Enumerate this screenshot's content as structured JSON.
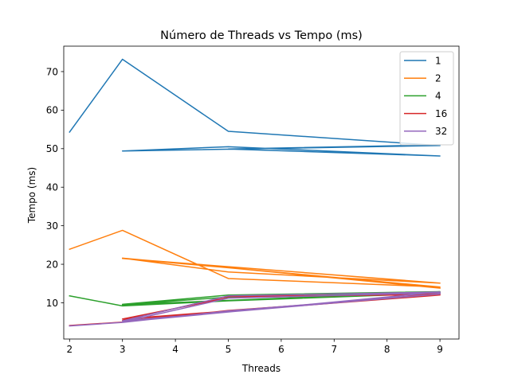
{
  "chart_data": {
    "type": "line",
    "title": "Número de Threads vs Tempo (ms)",
    "xlabel": "Threads",
    "ylabel": "Tempo (ms)",
    "xlim": [
      1.89,
      9.36
    ],
    "ylim": [
      0.6,
      76.6
    ],
    "xticks": [
      2,
      3,
      4,
      5,
      6,
      7,
      8,
      9
    ],
    "yticks": [
      10,
      20,
      30,
      40,
      50,
      60,
      70
    ],
    "grid": false,
    "legend_position": "top-right",
    "series": [
      {
        "name": "1",
        "color": "#1f77b4",
        "points": [
          [
            2,
            54.3
          ],
          [
            3,
            73.2
          ],
          [
            5,
            54.5
          ],
          [
            9,
            50.8
          ],
          [
            3,
            49.4
          ],
          [
            5,
            50.5
          ],
          [
            9,
            48.1
          ],
          [
            5,
            49.9
          ],
          [
            9,
            51.0
          ]
        ]
      },
      {
        "name": "2",
        "color": "#ff7f0e",
        "points": [
          [
            2,
            23.9
          ],
          [
            3,
            28.8
          ],
          [
            5,
            16.3
          ],
          [
            9,
            14.1
          ],
          [
            3,
            21.6
          ],
          [
            5,
            18.0
          ],
          [
            9,
            15.1
          ],
          [
            3,
            21.5
          ],
          [
            5,
            19.1
          ],
          [
            9,
            13.8
          ]
        ]
      },
      {
        "name": "4",
        "color": "#2ca02c",
        "points": [
          [
            2,
            11.8
          ],
          [
            3,
            9.2
          ],
          [
            5,
            10.5
          ],
          [
            9,
            12.5
          ],
          [
            3,
            9.6
          ],
          [
            5,
            12.0
          ],
          [
            9,
            12.9
          ],
          [
            3,
            9.5
          ],
          [
            5,
            11.5
          ],
          [
            9,
            12.6
          ]
        ]
      },
      {
        "name": "16",
        "color": "#d62728",
        "points": [
          [
            2,
            4.1
          ],
          [
            3,
            5.0
          ],
          [
            5,
            8.0
          ],
          [
            9,
            12.0
          ],
          [
            3,
            5.8
          ],
          [
            5,
            11.3
          ],
          [
            9,
            12.4
          ],
          [
            3,
            5.4
          ],
          [
            5,
            11.7
          ],
          [
            9,
            12.1
          ]
        ]
      },
      {
        "name": "32",
        "color": "#9467bd",
        "points": [
          [
            2,
            4.0
          ],
          [
            3,
            4.9
          ],
          [
            5,
            7.9
          ],
          [
            9,
            12.3
          ],
          [
            3,
            5.3
          ],
          [
            5,
            11.8
          ],
          [
            9,
            12.8
          ],
          [
            3,
            5.0
          ],
          [
            5,
            11.2
          ],
          [
            9,
            12.6
          ]
        ]
      }
    ]
  }
}
